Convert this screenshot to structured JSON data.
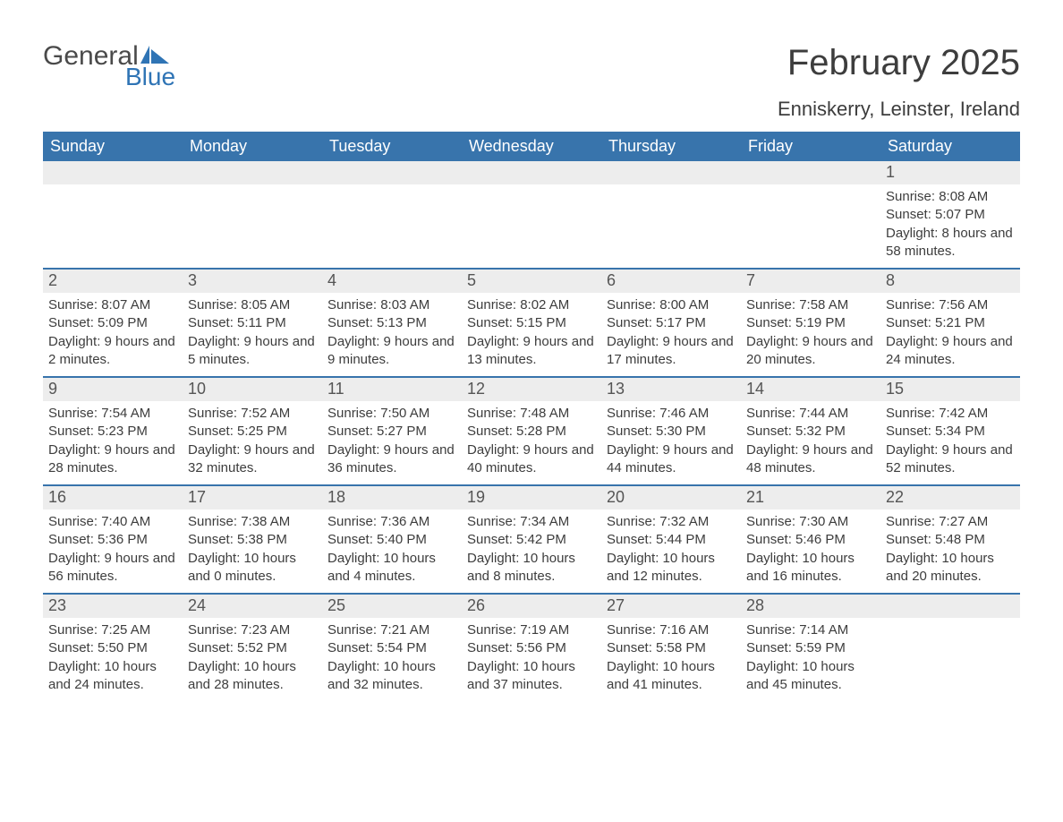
{
  "logo": {
    "text_general": "General",
    "text_blue": "Blue",
    "flag_color": "#2f74b5"
  },
  "title": "February 2025",
  "location": "Enniskerry, Leinster, Ireland",
  "colors": {
    "header_bg": "#3874ac",
    "header_text": "#ffffff",
    "daynum_bg": "#ededed",
    "week_border": "#3874ac",
    "body_text": "#3d3d3d",
    "page_bg": "#ffffff"
  },
  "typography": {
    "title_fontsize": 40,
    "location_fontsize": 22,
    "dayheader_fontsize": 18,
    "daynum_fontsize": 18,
    "body_fontsize": 15
  },
  "day_labels": [
    "Sunday",
    "Monday",
    "Tuesday",
    "Wednesday",
    "Thursday",
    "Friday",
    "Saturday"
  ],
  "weeks": [
    [
      null,
      null,
      null,
      null,
      null,
      null,
      {
        "n": "1",
        "sunrise": "8:08 AM",
        "sunset": "5:07 PM",
        "daylight": "8 hours and 58 minutes."
      }
    ],
    [
      {
        "n": "2",
        "sunrise": "8:07 AM",
        "sunset": "5:09 PM",
        "daylight": "9 hours and 2 minutes."
      },
      {
        "n": "3",
        "sunrise": "8:05 AM",
        "sunset": "5:11 PM",
        "daylight": "9 hours and 5 minutes."
      },
      {
        "n": "4",
        "sunrise": "8:03 AM",
        "sunset": "5:13 PM",
        "daylight": "9 hours and 9 minutes."
      },
      {
        "n": "5",
        "sunrise": "8:02 AM",
        "sunset": "5:15 PM",
        "daylight": "9 hours and 13 minutes."
      },
      {
        "n": "6",
        "sunrise": "8:00 AM",
        "sunset": "5:17 PM",
        "daylight": "9 hours and 17 minutes."
      },
      {
        "n": "7",
        "sunrise": "7:58 AM",
        "sunset": "5:19 PM",
        "daylight": "9 hours and 20 minutes."
      },
      {
        "n": "8",
        "sunrise": "7:56 AM",
        "sunset": "5:21 PM",
        "daylight": "9 hours and 24 minutes."
      }
    ],
    [
      {
        "n": "9",
        "sunrise": "7:54 AM",
        "sunset": "5:23 PM",
        "daylight": "9 hours and 28 minutes."
      },
      {
        "n": "10",
        "sunrise": "7:52 AM",
        "sunset": "5:25 PM",
        "daylight": "9 hours and 32 minutes."
      },
      {
        "n": "11",
        "sunrise": "7:50 AM",
        "sunset": "5:27 PM",
        "daylight": "9 hours and 36 minutes."
      },
      {
        "n": "12",
        "sunrise": "7:48 AM",
        "sunset": "5:28 PM",
        "daylight": "9 hours and 40 minutes."
      },
      {
        "n": "13",
        "sunrise": "7:46 AM",
        "sunset": "5:30 PM",
        "daylight": "9 hours and 44 minutes."
      },
      {
        "n": "14",
        "sunrise": "7:44 AM",
        "sunset": "5:32 PM",
        "daylight": "9 hours and 48 minutes."
      },
      {
        "n": "15",
        "sunrise": "7:42 AM",
        "sunset": "5:34 PM",
        "daylight": "9 hours and 52 minutes."
      }
    ],
    [
      {
        "n": "16",
        "sunrise": "7:40 AM",
        "sunset": "5:36 PM",
        "daylight": "9 hours and 56 minutes."
      },
      {
        "n": "17",
        "sunrise": "7:38 AM",
        "sunset": "5:38 PM",
        "daylight": "10 hours and 0 minutes."
      },
      {
        "n": "18",
        "sunrise": "7:36 AM",
        "sunset": "5:40 PM",
        "daylight": "10 hours and 4 minutes."
      },
      {
        "n": "19",
        "sunrise": "7:34 AM",
        "sunset": "5:42 PM",
        "daylight": "10 hours and 8 minutes."
      },
      {
        "n": "20",
        "sunrise": "7:32 AM",
        "sunset": "5:44 PM",
        "daylight": "10 hours and 12 minutes."
      },
      {
        "n": "21",
        "sunrise": "7:30 AM",
        "sunset": "5:46 PM",
        "daylight": "10 hours and 16 minutes."
      },
      {
        "n": "22",
        "sunrise": "7:27 AM",
        "sunset": "5:48 PM",
        "daylight": "10 hours and 20 minutes."
      }
    ],
    [
      {
        "n": "23",
        "sunrise": "7:25 AM",
        "sunset": "5:50 PM",
        "daylight": "10 hours and 24 minutes."
      },
      {
        "n": "24",
        "sunrise": "7:23 AM",
        "sunset": "5:52 PM",
        "daylight": "10 hours and 28 minutes."
      },
      {
        "n": "25",
        "sunrise": "7:21 AM",
        "sunset": "5:54 PM",
        "daylight": "10 hours and 32 minutes."
      },
      {
        "n": "26",
        "sunrise": "7:19 AM",
        "sunset": "5:56 PM",
        "daylight": "10 hours and 37 minutes."
      },
      {
        "n": "27",
        "sunrise": "7:16 AM",
        "sunset": "5:58 PM",
        "daylight": "10 hours and 41 minutes."
      },
      {
        "n": "28",
        "sunrise": "7:14 AM",
        "sunset": "5:59 PM",
        "daylight": "10 hours and 45 minutes."
      },
      null
    ]
  ],
  "field_labels": {
    "sunrise": "Sunrise: ",
    "sunset": "Sunset: ",
    "daylight": "Daylight: "
  }
}
